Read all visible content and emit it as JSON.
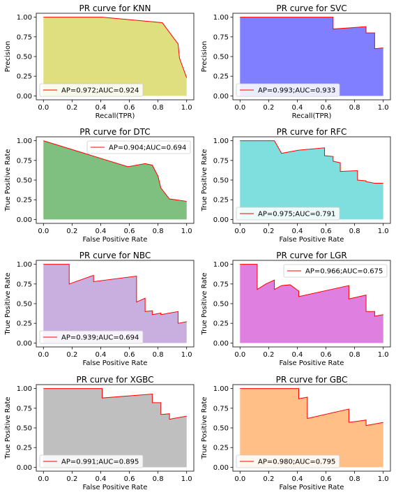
{
  "chart_data": [
    {
      "type": "area",
      "title": "PR curve for KNN",
      "xlabel": "Recall(TPR)",
      "ylabel": "Precision",
      "xlim": [
        -0.05,
        1.05
      ],
      "ylim": [
        -0.05,
        1.05
      ],
      "xticks": [
        "0.0",
        "0.2",
        "0.4",
        "0.6",
        "0.8",
        "1.0"
      ],
      "yticks": [
        "0.00",
        "0.25",
        "0.50",
        "0.75",
        "1.00"
      ],
      "fill_color": "#dfdf7f",
      "line_color": "#ff0000",
      "legend": "AP=0.972;AUC=0.924",
      "legend_loc": "lower-left",
      "x": [
        0.0,
        0.41,
        0.83,
        0.94,
        0.95,
        1.0
      ],
      "y": [
        1.0,
        1.0,
        0.93,
        0.66,
        0.48,
        0.23
      ]
    },
    {
      "type": "area",
      "title": "PR curve for SVC",
      "xlabel": "Recall(TPR)",
      "ylabel": "Precision",
      "xlim": [
        -0.05,
        1.05
      ],
      "ylim": [
        -0.05,
        1.05
      ],
      "xticks": [
        "0.0",
        "0.2",
        "0.4",
        "0.6",
        "0.8",
        "1.0"
      ],
      "yticks": [
        "0.00",
        "0.25",
        "0.50",
        "0.75",
        "1.00"
      ],
      "fill_color": "#7f7fff",
      "line_color": "#ff0000",
      "legend": "AP=0.993;AUC=0.933",
      "legend_loc": "lower-left",
      "x": [
        0.0,
        0.65,
        0.65,
        0.88,
        0.88,
        0.94,
        0.94,
        1.0
      ],
      "y": [
        1.0,
        1.0,
        0.85,
        0.88,
        0.8,
        0.8,
        0.6,
        0.61
      ]
    },
    {
      "type": "area",
      "title": "PR curve for DTC",
      "xlabel": "False Positive Rate",
      "ylabel": "True Positive Rate",
      "xlim": [
        -0.05,
        1.05
      ],
      "ylim": [
        -0.05,
        1.05
      ],
      "xticks": [
        "0.0",
        "0.2",
        "0.4",
        "0.6",
        "0.8",
        "1.0"
      ],
      "yticks": [
        "0.00",
        "0.25",
        "0.50",
        "0.75",
        "1.00"
      ],
      "fill_color": "#7fbf7f",
      "line_color": "#ff0000",
      "legend": "AP=0.904;AUC=0.694",
      "legend_loc": "upper-right",
      "x": [
        0.0,
        0.59,
        0.71,
        0.76,
        0.8,
        0.82,
        0.88,
        1.0
      ],
      "y": [
        1.0,
        0.67,
        0.71,
        0.69,
        0.55,
        0.4,
        0.26,
        0.23
      ]
    },
    {
      "type": "area",
      "title": "PR curve for RFC",
      "xlabel": "False Positive Rate",
      "ylabel": "True Positive Rate",
      "xlim": [
        -0.05,
        1.05
      ],
      "ylim": [
        -0.05,
        1.05
      ],
      "xticks": [
        "0.0",
        "0.2",
        "0.4",
        "0.6",
        "0.8",
        "1.0"
      ],
      "yticks": [
        "0.00",
        "0.25",
        "0.50",
        "0.75",
        "1.00"
      ],
      "fill_color": "#7fdfdf",
      "line_color": "#ff0000",
      "legend": "AP=0.975;AUC=0.791",
      "legend_loc": "lower-left",
      "x": [
        0.0,
        0.24,
        0.29,
        0.41,
        0.59,
        0.59,
        0.65,
        0.65,
        0.7,
        0.7,
        0.82,
        0.82,
        0.88,
        0.88,
        0.94,
        1.0
      ],
      "y": [
        1.0,
        1.0,
        0.84,
        0.88,
        0.91,
        0.81,
        0.8,
        0.74,
        0.72,
        0.61,
        0.62,
        0.5,
        0.49,
        0.48,
        0.46,
        0.46
      ]
    },
    {
      "type": "area",
      "title": "PR curve for NBC",
      "xlabel": "False Positive Rate",
      "ylabel": "True Positive Rate",
      "xlim": [
        -0.05,
        1.05
      ],
      "ylim": [
        -0.05,
        1.05
      ],
      "xticks": [
        "0.0",
        "0.2",
        "0.4",
        "0.6",
        "0.8",
        "1.0"
      ],
      "yticks": [
        "0.00",
        "0.25",
        "0.50",
        "0.75",
        "1.00"
      ],
      "fill_color": "#c9afdf",
      "line_color": "#ff0000",
      "legend": "AP=0.939;AUC=0.694",
      "legend_loc": "lower-left",
      "x": [
        0.0,
        0.18,
        0.18,
        0.35,
        0.35,
        0.65,
        0.65,
        0.71,
        0.71,
        0.76,
        0.76,
        0.82,
        0.82,
        0.94,
        0.94,
        1.0
      ],
      "y": [
        1.0,
        1.0,
        0.75,
        0.86,
        0.78,
        0.85,
        0.52,
        0.57,
        0.4,
        0.41,
        0.36,
        0.38,
        0.36,
        0.4,
        0.25,
        0.27
      ]
    },
    {
      "type": "area",
      "title": "PR curve for LGR",
      "xlabel": "False Positive Rate",
      "ylabel": "True Positive Rate",
      "xlim": [
        -0.05,
        1.05
      ],
      "ylim": [
        -0.05,
        1.05
      ],
      "xticks": [
        "0.0",
        "0.2",
        "0.4",
        "0.6",
        "0.8",
        "1.0"
      ],
      "yticks": [
        "0.00",
        "0.25",
        "0.50",
        "0.75",
        "1.00"
      ],
      "fill_color": "#df7fdf",
      "line_color": "#ff0000",
      "legend": "AP=0.966;AUC=0.675",
      "legend_loc": "upper-right",
      "x": [
        0.0,
        0.12,
        0.12,
        0.18,
        0.24,
        0.24,
        0.29,
        0.35,
        0.41,
        0.41,
        0.76,
        0.76,
        0.88,
        0.88,
        0.94,
        0.94,
        1.0
      ],
      "y": [
        1.0,
        1.0,
        0.68,
        0.75,
        0.8,
        0.68,
        0.73,
        0.74,
        0.66,
        0.59,
        0.73,
        0.56,
        0.61,
        0.4,
        0.4,
        0.34,
        0.36
      ]
    },
    {
      "type": "area",
      "title": "PR curve for XGBC",
      "xlabel": "False Positive Rate",
      "ylabel": "True Positive Rate",
      "xlim": [
        -0.05,
        1.05
      ],
      "ylim": [
        -0.05,
        1.05
      ],
      "xticks": [
        "0.0",
        "0.2",
        "0.4",
        "0.6",
        "0.8",
        "1.0"
      ],
      "yticks": [
        "0.00",
        "0.25",
        "0.50",
        "0.75",
        "1.00"
      ],
      "fill_color": "#bfbfbf",
      "line_color": "#ff0000",
      "legend": "AP=0.991;AUC=0.895",
      "legend_loc": "lower-left",
      "x": [
        0.0,
        0.41,
        0.41,
        0.76,
        0.76,
        0.82,
        0.82,
        0.88,
        0.88,
        1.0
      ],
      "y": [
        1.0,
        1.0,
        0.88,
        0.93,
        0.82,
        0.82,
        0.67,
        0.68,
        0.61,
        0.65
      ]
    },
    {
      "type": "area",
      "title": "PR curve for GBC",
      "xlabel": "False Positive Rate",
      "ylabel": "True Positive Rate",
      "xlim": [
        -0.05,
        1.05
      ],
      "ylim": [
        -0.05,
        1.05
      ],
      "xticks": [
        "0.0",
        "0.2",
        "0.4",
        "0.6",
        "0.8",
        "1.0"
      ],
      "yticks": [
        "0.00",
        "0.25",
        "0.50",
        "0.75",
        "1.00"
      ],
      "fill_color": "#ffbf87",
      "line_color": "#ff0000",
      "legend": "AP=0.980;AUC=0.795",
      "legend_loc": "lower-left",
      "x": [
        0.0,
        0.41,
        0.41,
        0.47,
        0.47,
        0.76,
        0.76,
        0.88,
        0.88,
        1.0
      ],
      "y": [
        1.0,
        1.0,
        0.87,
        0.89,
        0.62,
        0.74,
        0.57,
        0.6,
        0.53,
        0.57
      ]
    }
  ]
}
